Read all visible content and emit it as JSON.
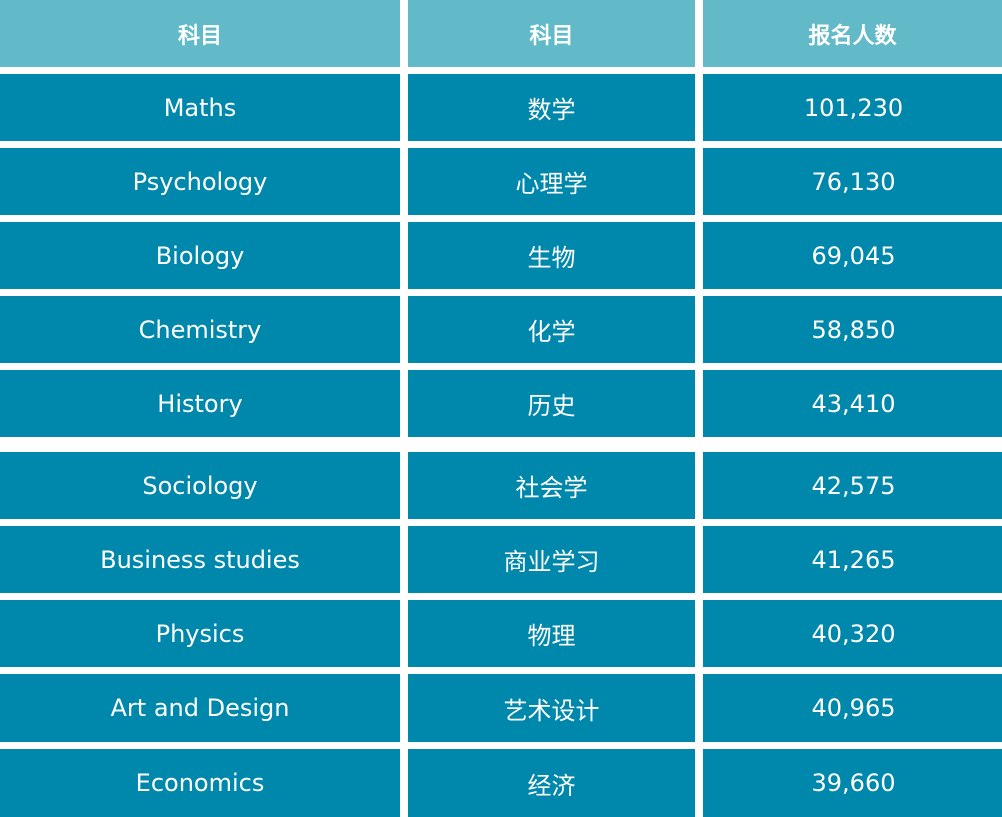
{
  "header": {
    "col_english": "科目",
    "col_chinese": "科目",
    "col_count": "报名人数"
  },
  "rows": [
    {
      "english": "Maths",
      "chinese": "数学",
      "count": "101,230"
    },
    {
      "english": "Psychology",
      "chinese": "心理学",
      "count": "76,130"
    },
    {
      "english": "Biology",
      "chinese": "生物",
      "count": "69,045"
    },
    {
      "english": "Chemistry",
      "chinese": "化学",
      "count": "58,850"
    },
    {
      "english": "History",
      "chinese": "历史",
      "count": "43,410"
    },
    {
      "english": "Sociology",
      "chinese": "社会学",
      "count": "42,575"
    },
    {
      "english": "Business studies",
      "chinese": "商业学习",
      "count": "41,265"
    },
    {
      "english": "Physics",
      "chinese": "物理",
      "count": "40,320"
    },
    {
      "english": "Art and Design",
      "chinese": "艺术设计",
      "count": "40,965"
    },
    {
      "english": "Economics",
      "chinese": "经济",
      "count": "39,660"
    }
  ],
  "colors": {
    "header_bg": "#62bac9",
    "row_bg": "#0088ac",
    "text": "#ffffff",
    "grid": "#ffffff"
  }
}
